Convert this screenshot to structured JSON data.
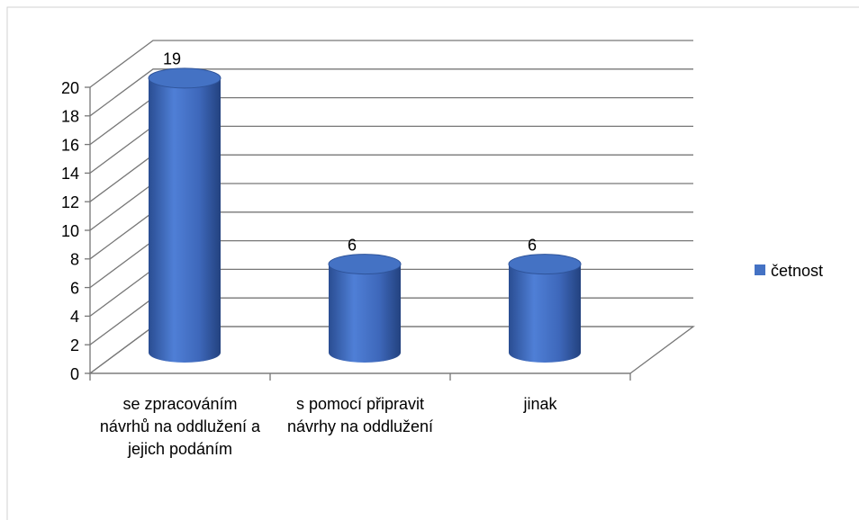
{
  "chart_data": {
    "type": "bar3d",
    "categories": [
      "se zpracováním návrhů na oddlužení a jejich podáním",
      "s pomocí připravit návrhy na oddlužení",
      "jinak"
    ],
    "series": [
      {
        "name": "četnost",
        "color": "#4472c4",
        "values": [
          19,
          6,
          6
        ]
      }
    ],
    "ylim": [
      0,
      20
    ],
    "yticks": [
      0,
      2,
      4,
      6,
      8,
      10,
      12,
      14,
      16,
      18,
      20
    ],
    "grid": true,
    "legend": "right"
  }
}
